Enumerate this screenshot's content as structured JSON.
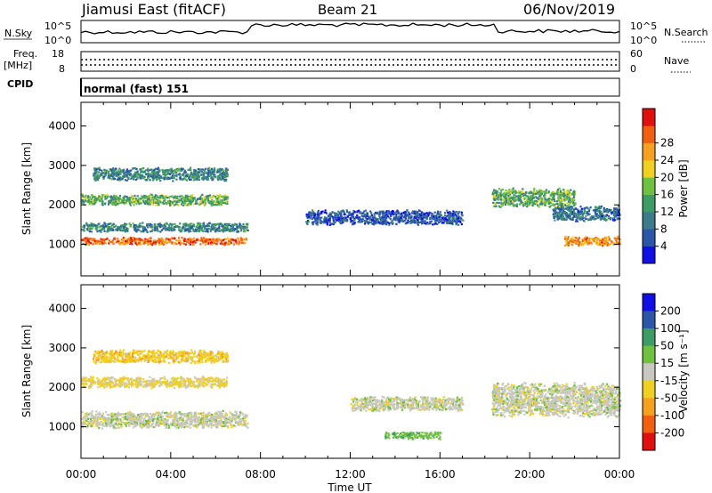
{
  "header": {
    "station": "Jiamusi East (fitACF)",
    "beam": "Beam 21",
    "date": "06/Nov/2019"
  },
  "small_panels": {
    "nsky_label": "N.Sky",
    "nsearch_label": "N.Search",
    "noise_ticks": [
      "10^5",
      "10^0"
    ],
    "freq_label_1": "Freq.",
    "freq_label_2": "[MHz]",
    "freq_ticks": [
      "18",
      "8"
    ],
    "nave_ticks": [
      "60",
      "0"
    ],
    "nave_label": "Nave",
    "cpid_label": "CPID",
    "cpid_text": "normal (fast) 151"
  },
  "colors": {
    "power_scale": [
      "#1010e6",
      "#2a55a8",
      "#3c7a8c",
      "#3d9c64",
      "#70c040",
      "#f0d020",
      "#f5a020",
      "#f06010",
      "#e01010"
    ],
    "velocity_scale": [
      "#1010e6",
      "#2a55a8",
      "#3d9c64",
      "#70c040",
      "#c8c8c0",
      "#f0d020",
      "#f5a020",
      "#f06010",
      "#e01010"
    ]
  },
  "chart_data": [
    {
      "type": "heatmap",
      "panel": "power",
      "ylabel": "Slant Range [km]",
      "xlim": [
        "00:00",
        "24:00"
      ],
      "ylim": [
        200,
        4600
      ],
      "y_ticks": [
        "1000",
        "2000",
        "3000",
        "4000"
      ],
      "colorbar": {
        "label": "Power [dB]",
        "ticks": [
          "4",
          "8",
          "12",
          "16",
          "20",
          "24",
          "28"
        ],
        "range": [
          0,
          32
        ]
      },
      "echo_regions": [
        {
          "t_start": 0.0,
          "t_end": 7.4,
          "range_km": 1100,
          "width_km": 200,
          "value_db": 26
        },
        {
          "t_start": 0.0,
          "t_end": 7.4,
          "range_km": 1450,
          "width_km": 250,
          "value_db": 10
        },
        {
          "t_start": 0.0,
          "t_end": 6.5,
          "range_km": 2150,
          "width_km": 300,
          "value_db": 14
        },
        {
          "t_start": 0.5,
          "t_end": 6.5,
          "range_km": 2800,
          "width_km": 350,
          "value_db": 10
        },
        {
          "t_start": 10.0,
          "t_end": 17.0,
          "range_km": 1700,
          "width_km": 400,
          "value_db": 6
        },
        {
          "t_start": 18.3,
          "t_end": 22.0,
          "range_km": 2200,
          "width_km": 500,
          "value_db": 14
        },
        {
          "t_start": 21.5,
          "t_end": 24.0,
          "range_km": 1100,
          "width_km": 250,
          "value_db": 24
        },
        {
          "t_start": 21.0,
          "t_end": 24.0,
          "range_km": 1800,
          "width_km": 400,
          "value_db": 8
        }
      ]
    },
    {
      "type": "heatmap",
      "panel": "velocity",
      "xlabel": "Time UT",
      "x_ticks": [
        "00:00",
        "04:00",
        "08:00",
        "12:00",
        "16:00",
        "20:00",
        "00:00"
      ],
      "ylabel": "Slant Range [km]",
      "xlim": [
        "00:00",
        "24:00"
      ],
      "ylim": [
        200,
        4600
      ],
      "y_ticks": [
        "1000",
        "2000",
        "3000",
        "4000"
      ],
      "colorbar": {
        "label": "Velocity [m s⁻¹]",
        "ticks": [
          "200",
          "100",
          "50",
          "15",
          "-15",
          "-50",
          "-100",
          "-200"
        ],
        "range": [
          -250,
          250
        ]
      },
      "echo_regions": [
        {
          "t_start": 0.0,
          "t_end": 7.4,
          "range_km": 1200,
          "width_km": 450,
          "value_ms": 0
        },
        {
          "t_start": 0.0,
          "t_end": 6.5,
          "range_km": 2150,
          "width_km": 300,
          "value_ms": -40
        },
        {
          "t_start": 0.5,
          "t_end": 6.5,
          "range_km": 2800,
          "width_km": 350,
          "value_ms": -60
        },
        {
          "t_start": 12.0,
          "t_end": 17.0,
          "range_km": 1600,
          "width_km": 400,
          "value_ms": 0
        },
        {
          "t_start": 13.5,
          "t_end": 16.0,
          "range_km": 800,
          "width_km": 200,
          "value_ms": 60
        },
        {
          "t_start": 18.3,
          "t_end": 24.0,
          "range_km": 1700,
          "width_km": 900,
          "value_ms": 0
        }
      ]
    }
  ]
}
